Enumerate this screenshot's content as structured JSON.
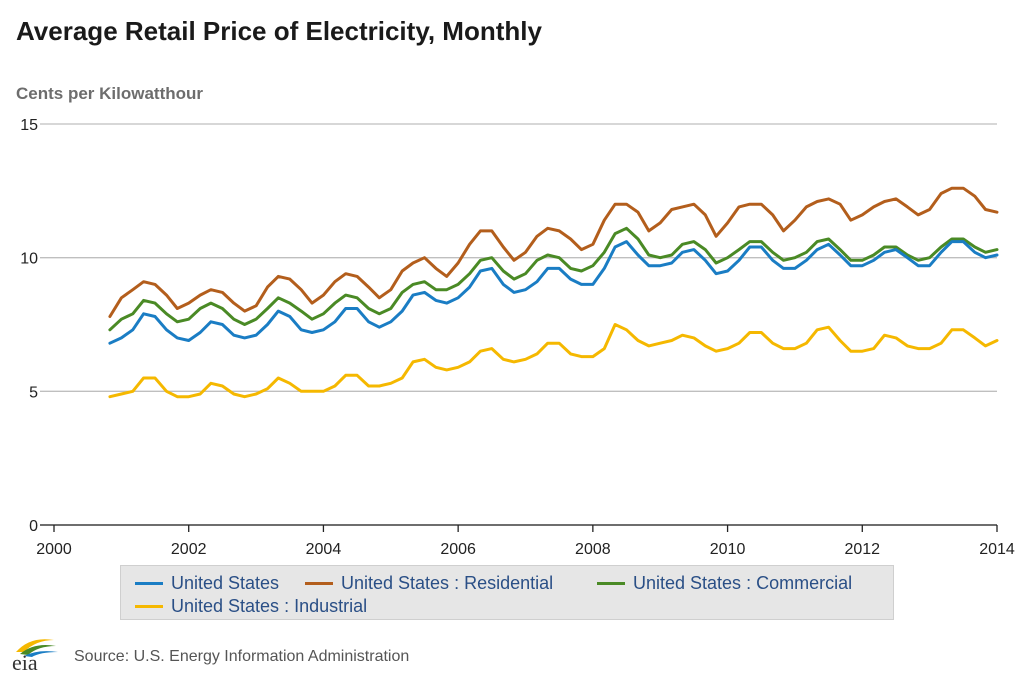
{
  "title": "Average Retail Price of Electricity, Monthly",
  "source": "Source: U.S. Energy Information Administration",
  "logo_text": "eia",
  "colors": {
    "united_states": "#1a7dc4",
    "residential": "#b35e1c",
    "commercial": "#4a8a25",
    "industrial": "#f5b800"
  },
  "chart_data": {
    "type": "line",
    "ylabel": "Cents per Kilowatthour",
    "xlabel": "",
    "xlim": [
      2000,
      2014
    ],
    "ylim": [
      0,
      15
    ],
    "x_ticks": [
      "2000",
      "2002",
      "2004",
      "2006",
      "2008",
      "2010",
      "2012",
      "2014"
    ],
    "y_ticks": [
      "0",
      "5",
      "10",
      "15"
    ],
    "grid": "horizontal",
    "legend_position": "bottom",
    "x": [
      2000.83,
      2001.0,
      2001.17,
      2001.33,
      2001.5,
      2001.67,
      2001.83,
      2002.0,
      2002.17,
      2002.33,
      2002.5,
      2002.67,
      2002.83,
      2003.0,
      2003.17,
      2003.33,
      2003.5,
      2003.67,
      2003.83,
      2004.0,
      2004.17,
      2004.33,
      2004.5,
      2004.67,
      2004.83,
      2005.0,
      2005.17,
      2005.33,
      2005.5,
      2005.67,
      2005.83,
      2006.0,
      2006.17,
      2006.33,
      2006.5,
      2006.67,
      2006.83,
      2007.0,
      2007.17,
      2007.33,
      2007.5,
      2007.67,
      2007.83,
      2008.0,
      2008.17,
      2008.33,
      2008.5,
      2008.67,
      2008.83,
      2009.0,
      2009.17,
      2009.33,
      2009.5,
      2009.67,
      2009.83,
      2010.0,
      2010.17,
      2010.33,
      2010.5,
      2010.67,
      2010.83,
      2011.0,
      2011.17,
      2011.33,
      2011.5,
      2011.67,
      2011.83,
      2012.0,
      2012.17,
      2012.33,
      2012.5,
      2012.67,
      2012.83,
      2013.0,
      2013.17,
      2013.33,
      2013.5,
      2013.67,
      2013.83,
      2014.0
    ],
    "series": [
      {
        "name": "United States : Residential",
        "color_key": "residential",
        "values": [
          7.8,
          8.5,
          8.8,
          9.1,
          9.0,
          8.6,
          8.1,
          8.3,
          8.6,
          8.8,
          8.7,
          8.3,
          8.0,
          8.2,
          8.9,
          9.3,
          9.2,
          8.8,
          8.3,
          8.6,
          9.1,
          9.4,
          9.3,
          8.9,
          8.5,
          8.8,
          9.5,
          9.8,
          10.0,
          9.6,
          9.3,
          9.8,
          10.5,
          11.0,
          11.0,
          10.4,
          9.9,
          10.2,
          10.8,
          11.1,
          11.0,
          10.7,
          10.3,
          10.5,
          11.4,
          12.0,
          12.0,
          11.7,
          11.0,
          11.3,
          11.8,
          11.9,
          12.0,
          11.6,
          10.8,
          11.3,
          11.9,
          12.0,
          12.0,
          11.6,
          11.0,
          11.4,
          11.9,
          12.1,
          12.2,
          12.0,
          11.4,
          11.6,
          11.9,
          12.1,
          12.2,
          11.9,
          11.6,
          11.8,
          12.4,
          12.6,
          12.6,
          12.3,
          11.8,
          11.7
        ]
      },
      {
        "name": "United States : Commercial",
        "color_key": "commercial",
        "values": [
          7.3,
          7.7,
          7.9,
          8.4,
          8.3,
          7.9,
          7.6,
          7.7,
          8.1,
          8.3,
          8.1,
          7.7,
          7.5,
          7.7,
          8.1,
          8.5,
          8.3,
          8.0,
          7.7,
          7.9,
          8.3,
          8.6,
          8.5,
          8.1,
          7.9,
          8.1,
          8.7,
          9.0,
          9.1,
          8.8,
          8.8,
          9.0,
          9.4,
          9.9,
          10.0,
          9.5,
          9.2,
          9.4,
          9.9,
          10.1,
          10.0,
          9.6,
          9.5,
          9.7,
          10.2,
          10.9,
          11.1,
          10.7,
          10.1,
          10.0,
          10.1,
          10.5,
          10.6,
          10.3,
          9.8,
          10.0,
          10.3,
          10.6,
          10.6,
          10.2,
          9.9,
          10.0,
          10.2,
          10.6,
          10.7,
          10.3,
          9.9,
          9.9,
          10.1,
          10.4,
          10.4,
          10.1,
          9.9,
          10.0,
          10.4,
          10.7,
          10.7,
          10.4,
          10.2,
          10.3
        ]
      },
      {
        "name": "United States",
        "color_key": "united_states",
        "values": [
          6.8,
          7.0,
          7.3,
          7.9,
          7.8,
          7.3,
          7.0,
          6.9,
          7.2,
          7.6,
          7.5,
          7.1,
          7.0,
          7.1,
          7.5,
          8.0,
          7.8,
          7.3,
          7.2,
          7.3,
          7.6,
          8.1,
          8.1,
          7.6,
          7.4,
          7.6,
          8.0,
          8.6,
          8.7,
          8.4,
          8.3,
          8.5,
          8.9,
          9.5,
          9.6,
          9.0,
          8.7,
          8.8,
          9.1,
          9.6,
          9.6,
          9.2,
          9.0,
          9.0,
          9.6,
          10.4,
          10.6,
          10.1,
          9.7,
          9.7,
          9.8,
          10.2,
          10.3,
          9.9,
          9.4,
          9.5,
          9.9,
          10.4,
          10.4,
          9.9,
          9.6,
          9.6,
          9.9,
          10.3,
          10.5,
          10.1,
          9.7,
          9.7,
          9.9,
          10.2,
          10.3,
          10.0,
          9.7,
          9.7,
          10.2,
          10.6,
          10.6,
          10.2,
          10.0,
          10.1
        ]
      },
      {
        "name": "United States : Industrial",
        "color_key": "industrial",
        "values": [
          4.8,
          4.9,
          5.0,
          5.5,
          5.5,
          5.0,
          4.8,
          4.8,
          4.9,
          5.3,
          5.2,
          4.9,
          4.8,
          4.9,
          5.1,
          5.5,
          5.3,
          5.0,
          5.0,
          5.0,
          5.2,
          5.6,
          5.6,
          5.2,
          5.2,
          5.3,
          5.5,
          6.1,
          6.2,
          5.9,
          5.8,
          5.9,
          6.1,
          6.5,
          6.6,
          6.2,
          6.1,
          6.2,
          6.4,
          6.8,
          6.8,
          6.4,
          6.3,
          6.3,
          6.6,
          7.5,
          7.3,
          6.9,
          6.7,
          6.8,
          6.9,
          7.1,
          7.0,
          6.7,
          6.5,
          6.6,
          6.8,
          7.2,
          7.2,
          6.8,
          6.6,
          6.6,
          6.8,
          7.3,
          7.4,
          6.9,
          6.5,
          6.5,
          6.6,
          7.1,
          7.0,
          6.7,
          6.6,
          6.6,
          6.8,
          7.3,
          7.3,
          7.0,
          6.7,
          6.9
        ]
      }
    ],
    "legend": [
      {
        "label": "United States",
        "color_key": "united_states"
      },
      {
        "label": "United States : Residential",
        "color_key": "residential"
      },
      {
        "label": "United States : Commercial",
        "color_key": "commercial"
      },
      {
        "label": "United States : Industrial",
        "color_key": "industrial"
      }
    ]
  }
}
